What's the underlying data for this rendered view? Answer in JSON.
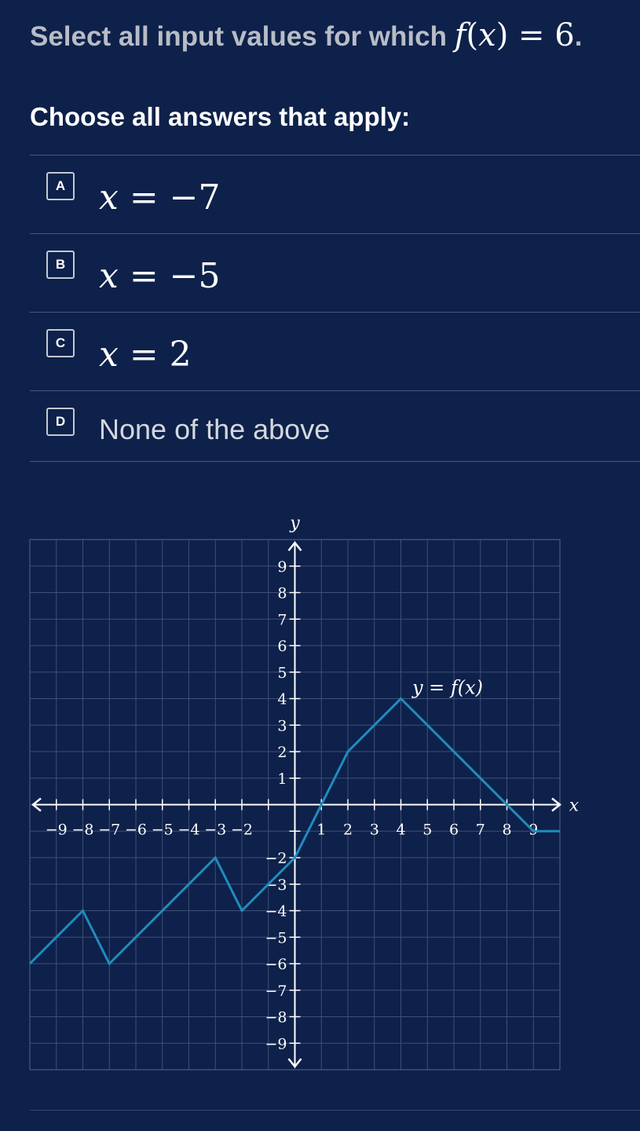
{
  "question": {
    "prefix": "Select all input values for which ",
    "fn": "f",
    "open_paren": "(",
    "var": "x",
    "close_paren": ")",
    "equals_value": " = 6",
    "period": "."
  },
  "instruction": "Choose all answers that apply:",
  "choices": [
    {
      "letter": "A",
      "var": "x",
      "rest": " = −7"
    },
    {
      "letter": "B",
      "var": "x",
      "rest": " = −5"
    },
    {
      "letter": "C",
      "var": "x",
      "rest": " = 2"
    },
    {
      "letter": "D",
      "text": "None of the above"
    }
  ],
  "chart_data": {
    "type": "line",
    "xlabel": "x",
    "ylabel": "y",
    "xlim": [
      -10,
      10
    ],
    "ylim": [
      -10,
      10
    ],
    "grid": true,
    "x_ticks": [
      -9,
      -8,
      -7,
      -6,
      -5,
      -4,
      -3,
      -2,
      1,
      2,
      3,
      4,
      5,
      6,
      7,
      8,
      9
    ],
    "y_ticks": [
      9,
      8,
      7,
      6,
      5,
      4,
      3,
      2,
      1,
      -2,
      -3,
      -4,
      -5,
      -6,
      -7,
      -8,
      -9
    ],
    "curve_label": "y = f(x)",
    "line_color": "#1f8dbd",
    "series": [
      {
        "x": [
          -10,
          -8,
          -7,
          -3,
          -2,
          0,
          2,
          4,
          9,
          10
        ],
        "y": [
          -6,
          -4,
          -6,
          -2,
          -4,
          -2,
          2,
          4,
          -1,
          -1
        ]
      }
    ]
  }
}
